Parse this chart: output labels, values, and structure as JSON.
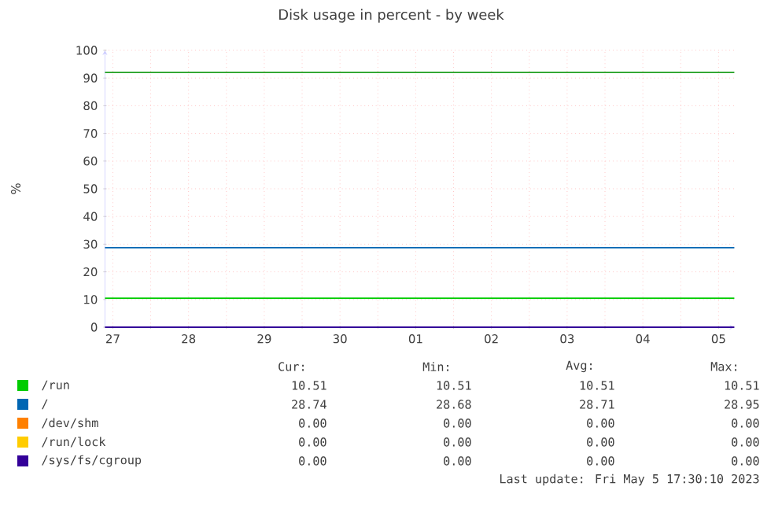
{
  "chart_data": {
    "type": "line",
    "title": "Disk usage in percent - by week",
    "ylabel": "%",
    "x": [
      "2023-04-27T09:30",
      "2023-05-05T17:00"
    ],
    "series": [
      {
        "name": "/run",
        "color": "#00cc00",
        "values": [
          10.5,
          10.5
        ]
      },
      {
        "name": "/",
        "color": "#0066b3",
        "values": [
          28.7,
          28.7
        ]
      },
      {
        "name": "/dev/shm",
        "color": "#ff8000",
        "values": [
          null,
          null
        ]
      },
      {
        "name": "/run/lock",
        "color": "#ffcc00",
        "values": [
          null,
          null
        ]
      },
      {
        "name": "/sys/fs/cgroup",
        "color": "#330099",
        "values": [
          0,
          0
        ]
      }
    ],
    "xlim": [
      "2023-04-27T09:30",
      "2023-05-05T17:00"
    ],
    "xticks": [
      {
        "value": "2023-04-27T12:00",
        "label": "27"
      },
      {
        "value": "2023-04-28",
        "label": null
      },
      {
        "value": "2023-04-28T12:00",
        "label": "28"
      },
      {
        "value": "2023-04-29",
        "label": null
      },
      {
        "value": "2023-04-29T12:00",
        "label": "29"
      },
      {
        "value": "2023-04-30",
        "label": null
      },
      {
        "value": "2023-04-30T12:00",
        "label": "30"
      },
      {
        "value": "2023-05-01",
        "label": null
      },
      {
        "value": "2023-05-01T12:00",
        "label": "01"
      },
      {
        "value": "2023-05-02",
        "label": null
      },
      {
        "value": "2023-05-02T12:00",
        "label": "02"
      },
      {
        "value": "2023-05-03",
        "label": null
      },
      {
        "value": "2023-05-03T12:00",
        "label": "03"
      },
      {
        "value": "2023-05-04",
        "label": null
      },
      {
        "value": "2023-05-04T12:00",
        "label": "04"
      },
      {
        "value": "2023-05-05",
        "label": null
      },
      {
        "value": "2023-05-05T12:00",
        "label": "05"
      }
    ],
    "ylim": [
      0,
      100
    ],
    "yticks": [
      0,
      10,
      20,
      30,
      40,
      50,
      60,
      70,
      80,
      90,
      100
    ],
    "ref_lines": [
      {
        "axis": "y",
        "value": 92,
        "color": "#22a022"
      }
    ],
    "grid": true,
    "legend": "bottom",
    "annotations": [
      "Cur:",
      "Min:",
      "Avg:",
      "Max:",
      "10.51",
      "10.51",
      "10.51",
      "10.51",
      "28.74",
      "28.68",
      "28.71",
      "28.95",
      "0.00",
      "0.00",
      "0.00",
      "0.00",
      "0.00",
      "0.00",
      "0.00",
      "0.00",
      "0.00",
      "0.00",
      "0.00",
      "0.00",
      "Last update: Fri May  5 17:30:10 2023"
    ]
  }
}
